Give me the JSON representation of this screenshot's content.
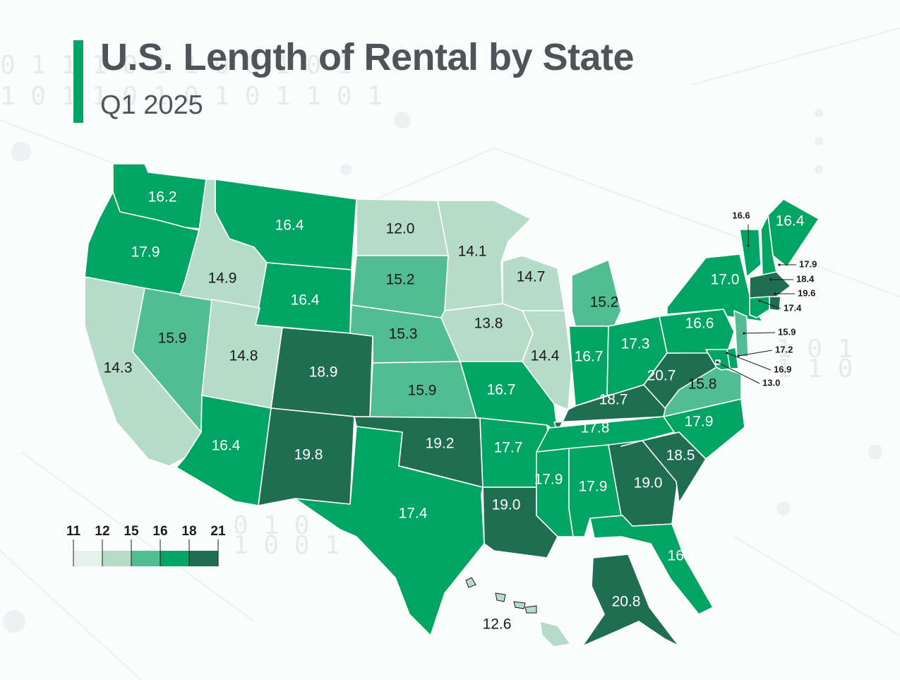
{
  "header": {
    "title": "U.S. Length of Rental by State",
    "subtitle": "Q1 2025"
  },
  "colors": {
    "accent": "#00a564",
    "bin_11_12": "#e3f3ec",
    "bin_12_15": "#b4dcc8",
    "bin_15_16": "#52bd93",
    "bin_16_18": "#00a564",
    "bin_18_21": "#1f6e52"
  },
  "legend": {
    "ticks": [
      "11",
      "12",
      "15",
      "16",
      "18",
      "21"
    ]
  },
  "states": {
    "WA": "16.2",
    "OR": "17.9",
    "CA": "14.3",
    "NV": "15.9",
    "ID": "14.9",
    "MT": "16.4",
    "WY": "16.4",
    "UT": "14.8",
    "AZ": "16.4",
    "CO": "18.9",
    "NM": "19.8",
    "ND": "12.0",
    "SD": "15.2",
    "NE": "15.3",
    "KS": "15.9",
    "OK": "19.2",
    "TX": "17.4",
    "MN": "14.1",
    "IA": "13.8",
    "MO": "16.7",
    "AR": "17.7",
    "LA": "19.0",
    "WI": "14.7",
    "IL": "14.4",
    "MI": "15.2",
    "IN": "16.7",
    "OH": "17.3",
    "KY": "18.7",
    "TN": "17.8",
    "MS": "17.9",
    "AL": "17.9",
    "GA": "19.0",
    "FL": "16.7",
    "SC": "18.5",
    "NC": "17.9",
    "VA": "15.8",
    "WV": "20.7",
    "PA": "16.6",
    "NY": "17.0",
    "ME": "16.4",
    "VT": "16.6",
    "NH": "17.9",
    "MA": "18.4",
    "RI": "19.6",
    "CT": "17.4",
    "NJ": "15.9",
    "DE": "17.2",
    "MD": "16.9",
    "DC": "13.0",
    "AK": "20.8",
    "HI": "12.6"
  }
}
